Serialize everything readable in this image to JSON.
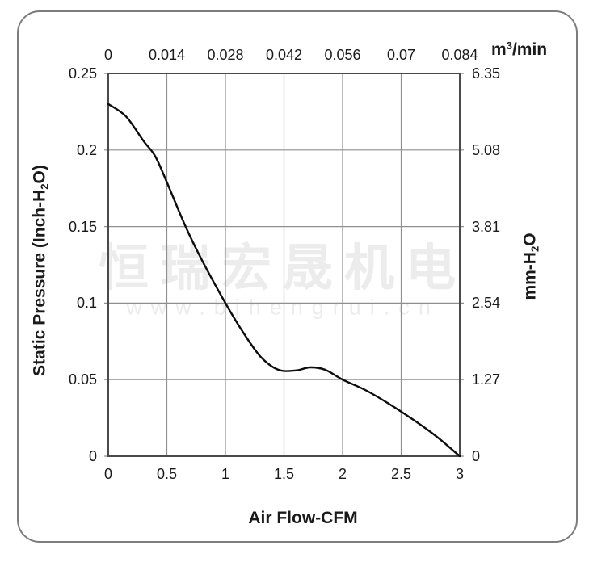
{
  "watermark": {
    "cjk_text": "恒瑞宏晟机电",
    "url_text": "www.bjhengrui.cn",
    "color": "#ececec"
  },
  "chart_data": {
    "type": "line",
    "title": "",
    "series": [
      {
        "name": "static-pressure-vs-airflow",
        "x_cfm": [
          0,
          0.15,
          0.3,
          0.4,
          0.5,
          0.66,
          0.8,
          1.0,
          1.15,
          1.3,
          1.45,
          1.6,
          1.72,
          1.85,
          2.0,
          2.2,
          2.4,
          2.6,
          2.8,
          3.0
        ],
        "y_inch_h2o": [
          0.23,
          0.222,
          0.206,
          0.196,
          0.179,
          0.15,
          0.128,
          0.1,
          0.081,
          0.065,
          0.0565,
          0.056,
          0.058,
          0.0565,
          0.05,
          0.043,
          0.034,
          0.024,
          0.013,
          0.0
        ]
      }
    ],
    "bottom_axis": {
      "label": "Air Flow-CFM",
      "range": [
        0,
        3
      ],
      "ticks": [
        "0",
        "0.5",
        "1",
        "1.5",
        "2",
        "2.5",
        "3"
      ]
    },
    "top_axis": {
      "unit_pre": "m",
      "unit_sup": "3",
      "unit_post": "/min",
      "range": [
        0,
        0.084
      ],
      "ticks": [
        "0",
        "0.014",
        "0.028",
        "0.042",
        "0.056",
        "0.07",
        "0.084"
      ]
    },
    "left_axis": {
      "label_pre": "Static Pressure (Inch-H",
      "label_sub": "2",
      "label_post": "O)",
      "range": [
        0,
        0.25
      ],
      "ticks": [
        "0.25",
        "0.2",
        "0.15",
        "0.1",
        "0.05",
        "0"
      ]
    },
    "right_axis": {
      "label_pre": "mm-H",
      "label_sub": "2",
      "label_post": "O",
      "range": [
        0,
        6.35
      ],
      "ticks": [
        "6.35",
        "5.08",
        "3.81",
        "2.54",
        "1.27",
        "0"
      ]
    },
    "grid": true,
    "legend": "none",
    "colors": {
      "curve": "#0d0d0d",
      "grid": "#8f8f8f",
      "frame": "#4a4a4a",
      "border": "#7d7d7d",
      "text": "#1a1a1a"
    }
  }
}
